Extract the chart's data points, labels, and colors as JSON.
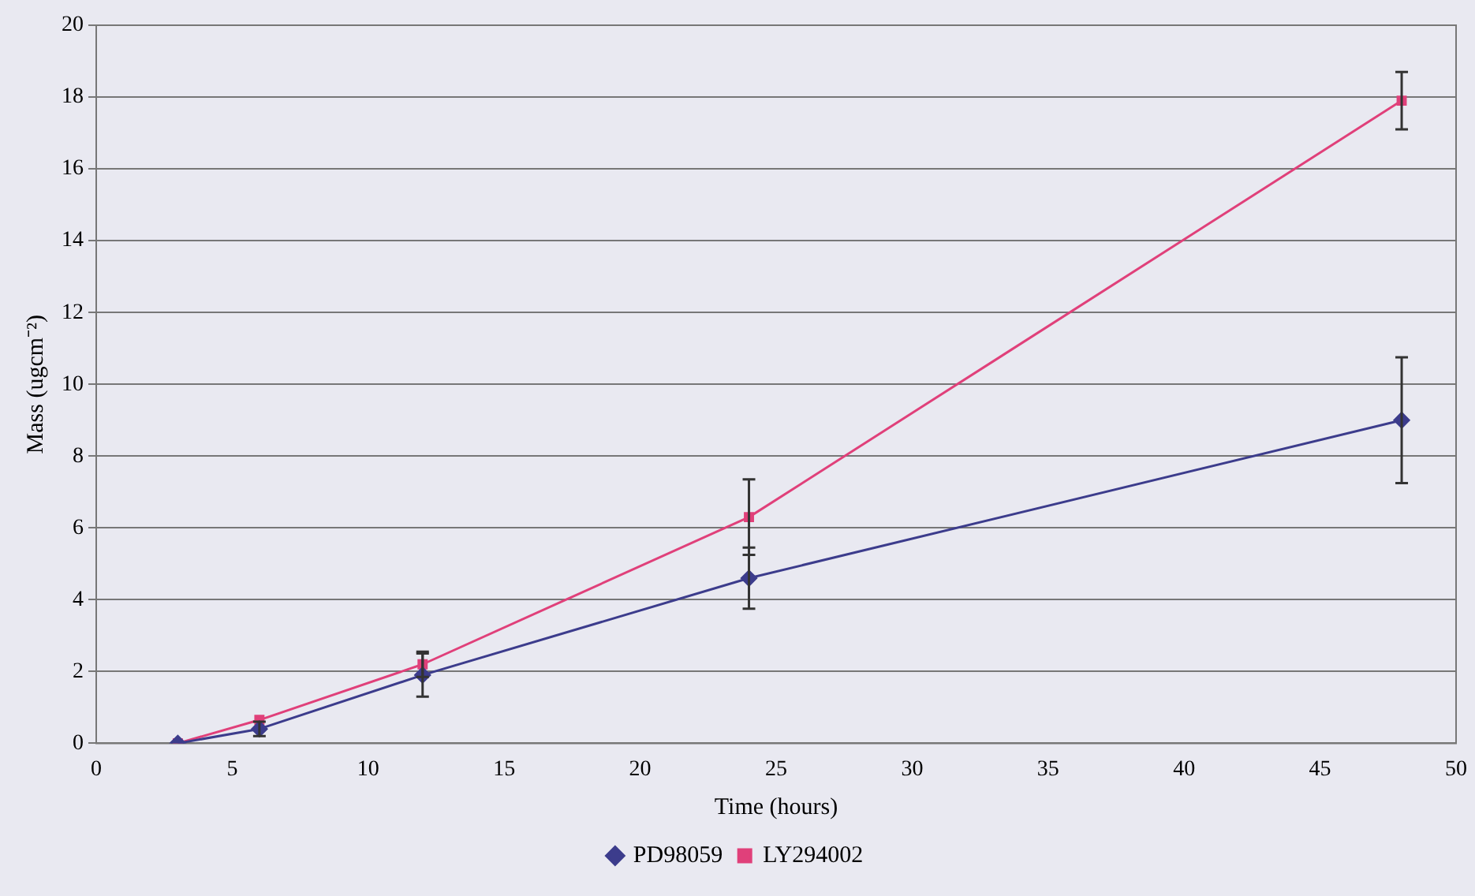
{
  "chart_data": {
    "type": "line",
    "xlabel": "Time (hours)",
    "ylabel": "Mass (ugcm⁻²)",
    "xlim": [
      0,
      50
    ],
    "xticks": [
      0,
      5,
      10,
      15,
      20,
      25,
      30,
      35,
      40,
      45,
      50
    ],
    "ylim": [
      0,
      20
    ],
    "yticks": [
      0,
      2,
      4,
      6,
      8,
      10,
      12,
      14,
      16,
      18,
      20
    ],
    "grid": "y",
    "legend": "bottom",
    "line_style": "solid",
    "series": [
      {
        "name": "PD98059",
        "color": "#3c3c8c",
        "marker": "diamond",
        "x": [
          3,
          6,
          12,
          24,
          48
        ],
        "values": [
          0,
          0.4,
          1.9,
          4.6,
          9.0
        ],
        "errors": [
          null,
          0.2,
          0.6,
          0.85,
          1.75
        ]
      },
      {
        "name": "LY294002",
        "color": "#e0407a",
        "marker": "square",
        "x": [
          3,
          6,
          12,
          24,
          48
        ],
        "values": [
          0,
          0.65,
          2.2,
          6.3,
          17.9
        ],
        "errors": [
          null,
          null,
          0.35,
          1.05,
          0.8
        ]
      }
    ]
  }
}
